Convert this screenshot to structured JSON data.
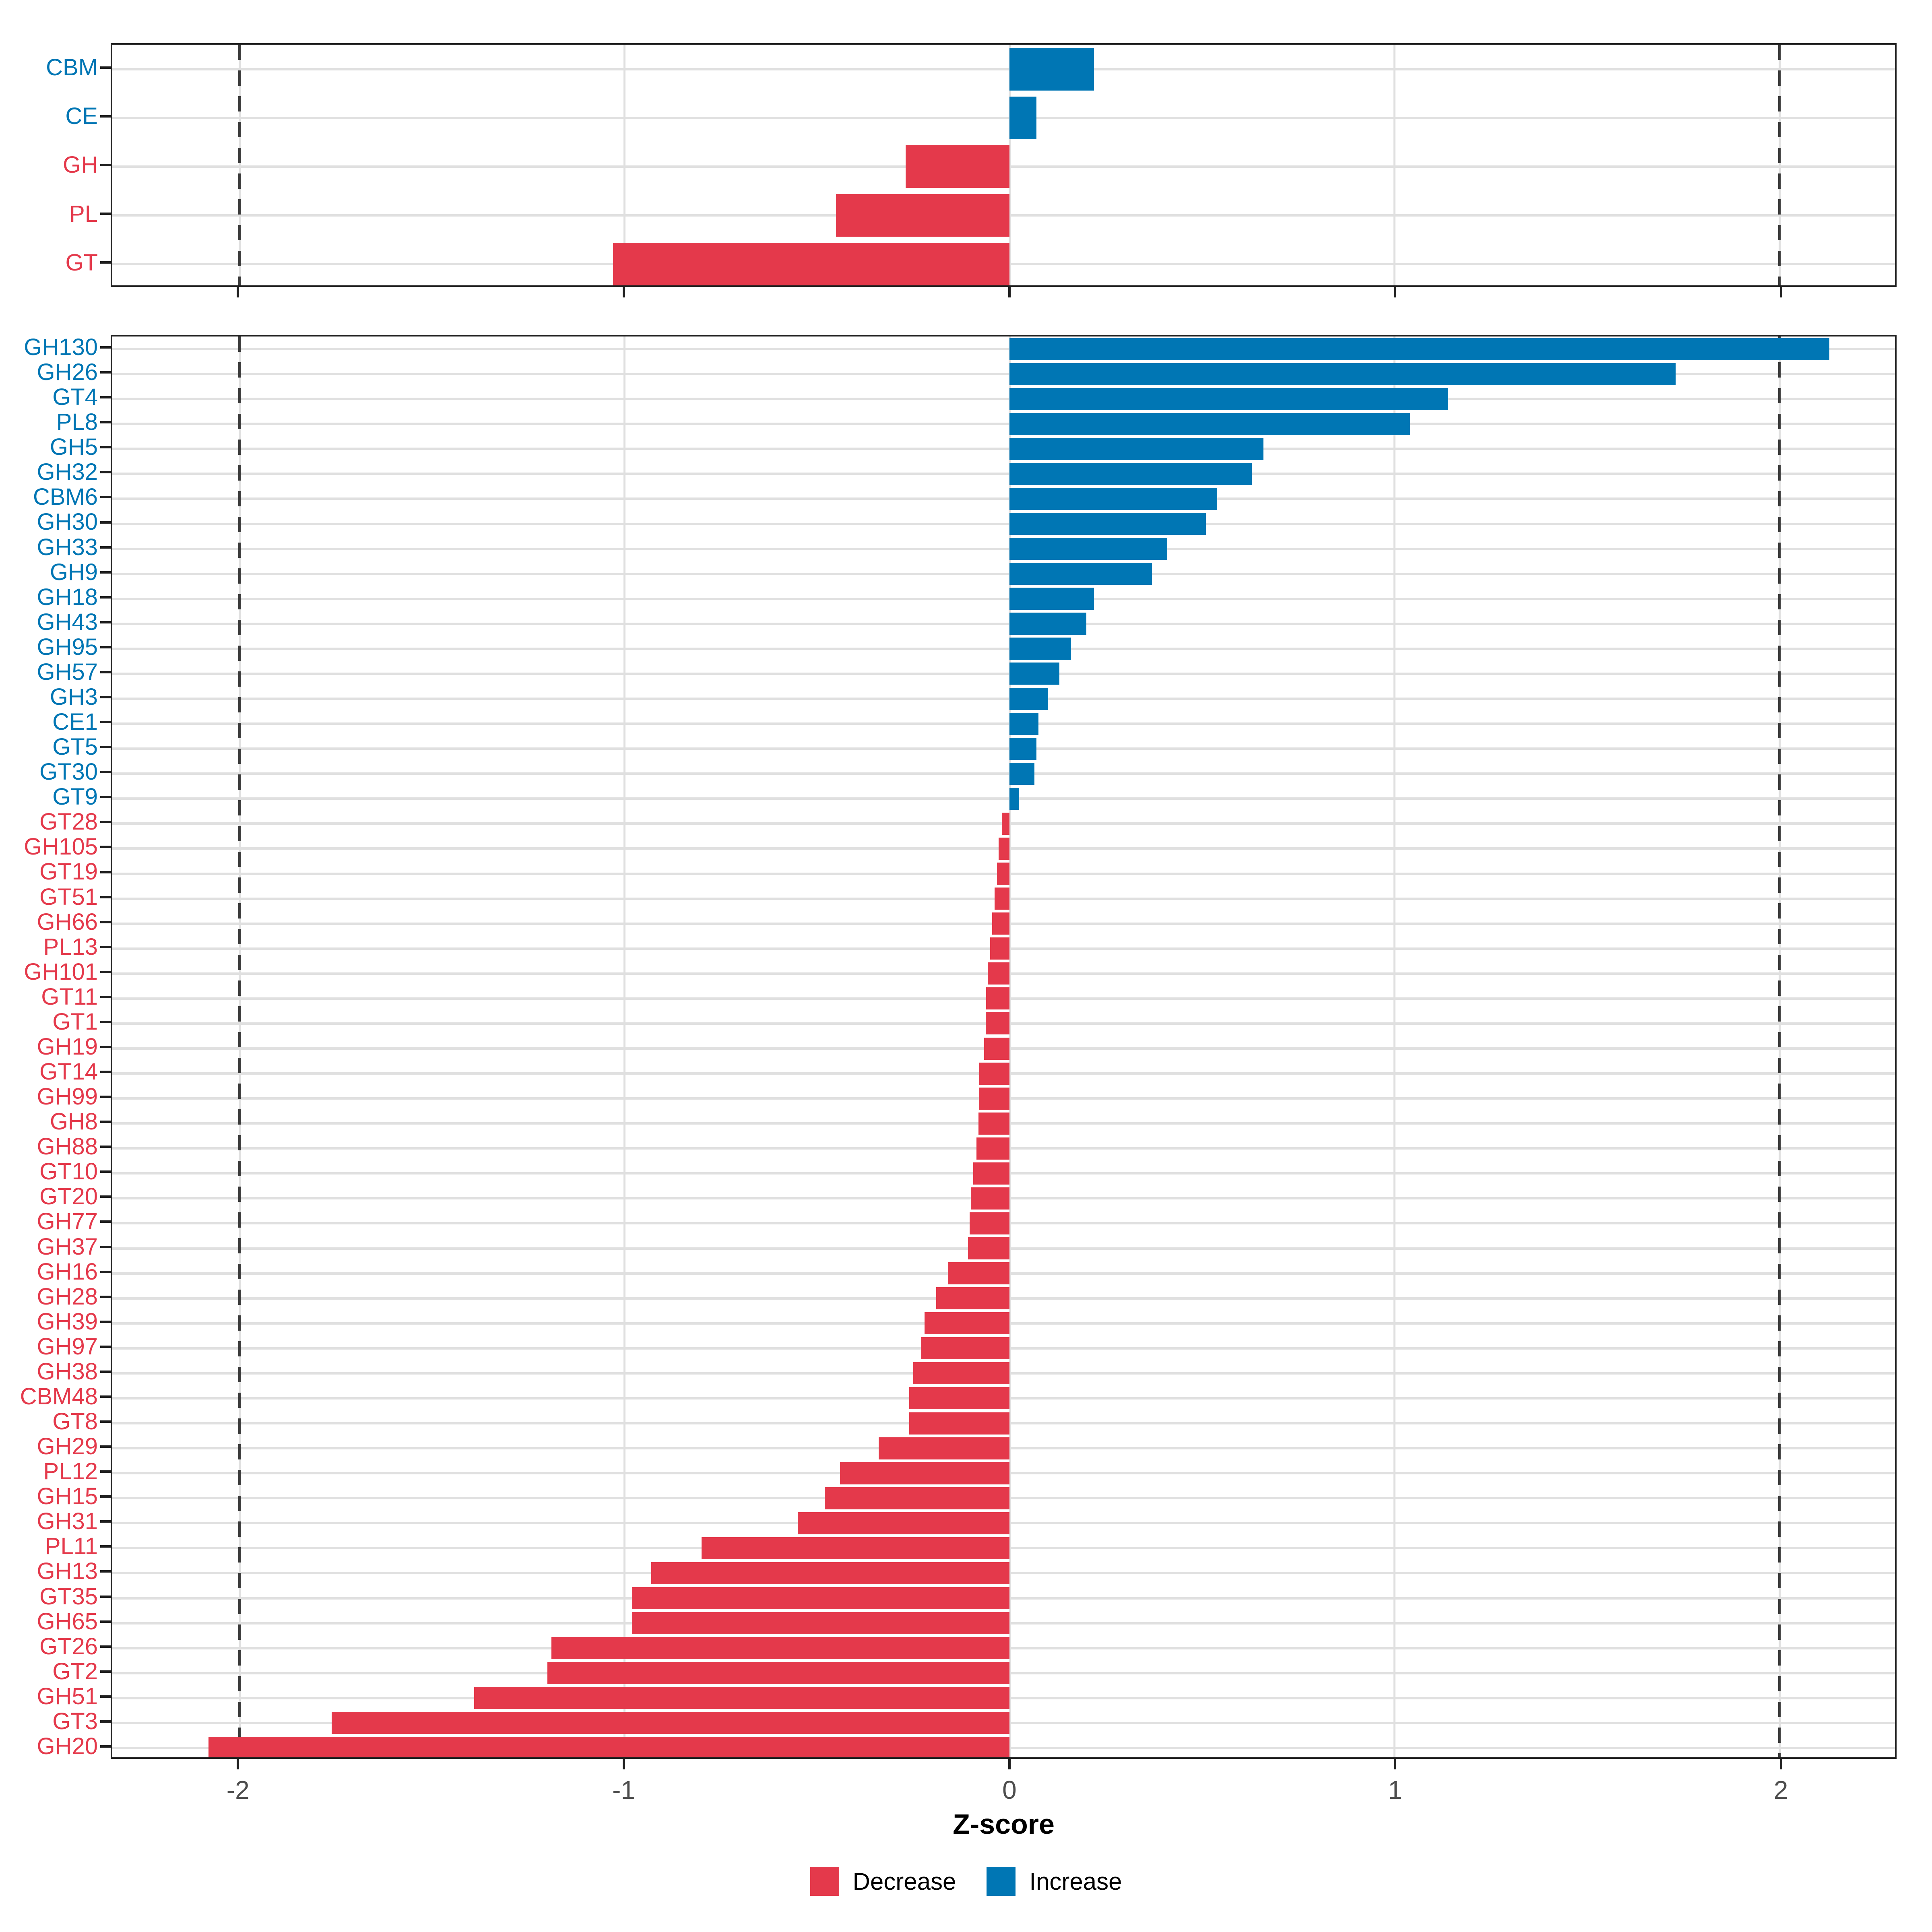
{
  "x_axis": {
    "label": "Z-score",
    "ticks": [
      -2,
      -1,
      0,
      1,
      2
    ],
    "dashed_at": [
      -2,
      2
    ],
    "xlim": [
      -2.33,
      2.3
    ]
  },
  "legend": [
    {
      "label": "Decrease",
      "color_key": "decrease"
    },
    {
      "label": "Increase",
      "color_key": "increase"
    }
  ],
  "colors": {
    "decrease": "#E4394B",
    "increase": "#0076B4",
    "grid": "#E0E0E0",
    "axis_text": "#4D4D4D",
    "dashed": "#3B3B3B"
  },
  "chart_data": [
    {
      "type": "bar",
      "panel": "top",
      "orientation": "horizontal",
      "xlabel": "Z-score",
      "xlim": [
        -2.33,
        2.3
      ],
      "grid": true,
      "legend_position": "bottom",
      "categories": [
        "CBM",
        "CE",
        "GH",
        "PL",
        "GT"
      ],
      "values": [
        0.22,
        0.07,
        -0.27,
        -0.45,
        -1.03
      ],
      "series_colors": {
        "positive": "#0076B4",
        "negative": "#E4394B"
      }
    },
    {
      "type": "bar",
      "panel": "bottom",
      "orientation": "horizontal",
      "xlabel": "Z-score",
      "xlim": [
        -2.33,
        2.3
      ],
      "grid": true,
      "legend_position": "bottom",
      "categories": [
        "GH130",
        "GH26",
        "GT4",
        "PL8",
        "GH5",
        "GH32",
        "CBM6",
        "GH30",
        "GH33",
        "GH9",
        "GH18",
        "GH43",
        "GH95",
        "GH57",
        "GH3",
        "CE1",
        "GT5",
        "GT30",
        "GT9",
        "GT28",
        "GH105",
        "GT19",
        "GT51",
        "GH66",
        "PL13",
        "GH101",
        "GT11",
        "GT1",
        "GH19",
        "GT14",
        "GH99",
        "GH8",
        "GH88",
        "GT10",
        "GT20",
        "GH77",
        "GH37",
        "GH16",
        "GH28",
        "GH39",
        "GH97",
        "GH38",
        "CBM48",
        "GT8",
        "GH29",
        "PL12",
        "GH15",
        "GH31",
        "PL11",
        "GH13",
        "GT35",
        "GH65",
        "GT26",
        "GT2",
        "GH51",
        "GT3",
        "GH20"
      ],
      "values": [
        2.13,
        1.73,
        1.14,
        1.04,
        0.66,
        0.63,
        0.54,
        0.51,
        0.41,
        0.37,
        0.22,
        0.2,
        0.16,
        0.13,
        0.1,
        0.075,
        0.07,
        0.065,
        0.025,
        -0.02,
        -0.028,
        -0.032,
        -0.038,
        -0.045,
        -0.05,
        -0.056,
        -0.06,
        -0.062,
        -0.066,
        -0.078,
        -0.079,
        -0.08,
        -0.086,
        -0.094,
        -0.1,
        -0.103,
        -0.107,
        -0.16,
        -0.19,
        -0.22,
        -0.23,
        -0.25,
        -0.26,
        -0.26,
        -0.34,
        -0.44,
        -0.48,
        -0.55,
        -0.8,
        -0.93,
        -0.98,
        -0.98,
        -1.19,
        -1.2,
        -1.39,
        -1.76,
        -2.08
      ],
      "series_colors": {
        "positive": "#0076B4",
        "negative": "#E4394B"
      }
    }
  ]
}
